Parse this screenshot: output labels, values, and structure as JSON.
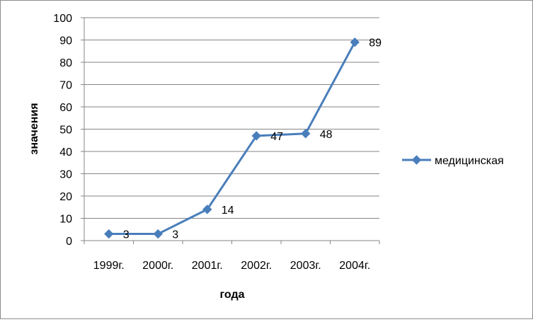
{
  "chart_data": {
    "type": "line",
    "title": "",
    "xlabel": "года",
    "ylabel": "значения",
    "categories": [
      "1999г.",
      "2000г.",
      "2001г.",
      "2002г.",
      "2003г.",
      "2004г."
    ],
    "series": [
      {
        "name": "медицинская",
        "values": [
          3,
          3,
          14,
          47,
          48,
          89
        ],
        "color": "#4a7ebb"
      }
    ],
    "ylim": [
      0,
      100
    ],
    "yticks": [
      0,
      10,
      20,
      30,
      40,
      50,
      60,
      70,
      80,
      90,
      100
    ],
    "grid": true,
    "legend": "right",
    "marker": "diamond",
    "data_labels": true
  }
}
